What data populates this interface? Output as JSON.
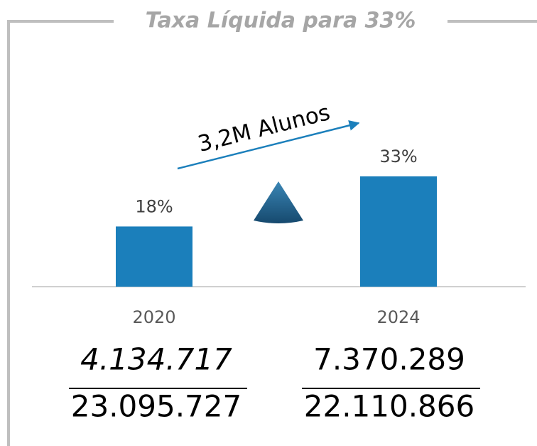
{
  "chart_data": {
    "type": "bar",
    "title": "Taxa Líquida para 33%",
    "annotation": "3,2M Alunos",
    "categories": [
      "2020",
      "2024"
    ],
    "values": [
      18,
      33
    ],
    "value_labels": [
      "18%",
      "33%"
    ],
    "color": "#1b7fbb",
    "fractions": [
      {
        "numerator": "4.134.717",
        "denominator": "23.095.727"
      },
      {
        "numerator": "7.370.289",
        "denominator": "22.110.866"
      }
    ]
  }
}
